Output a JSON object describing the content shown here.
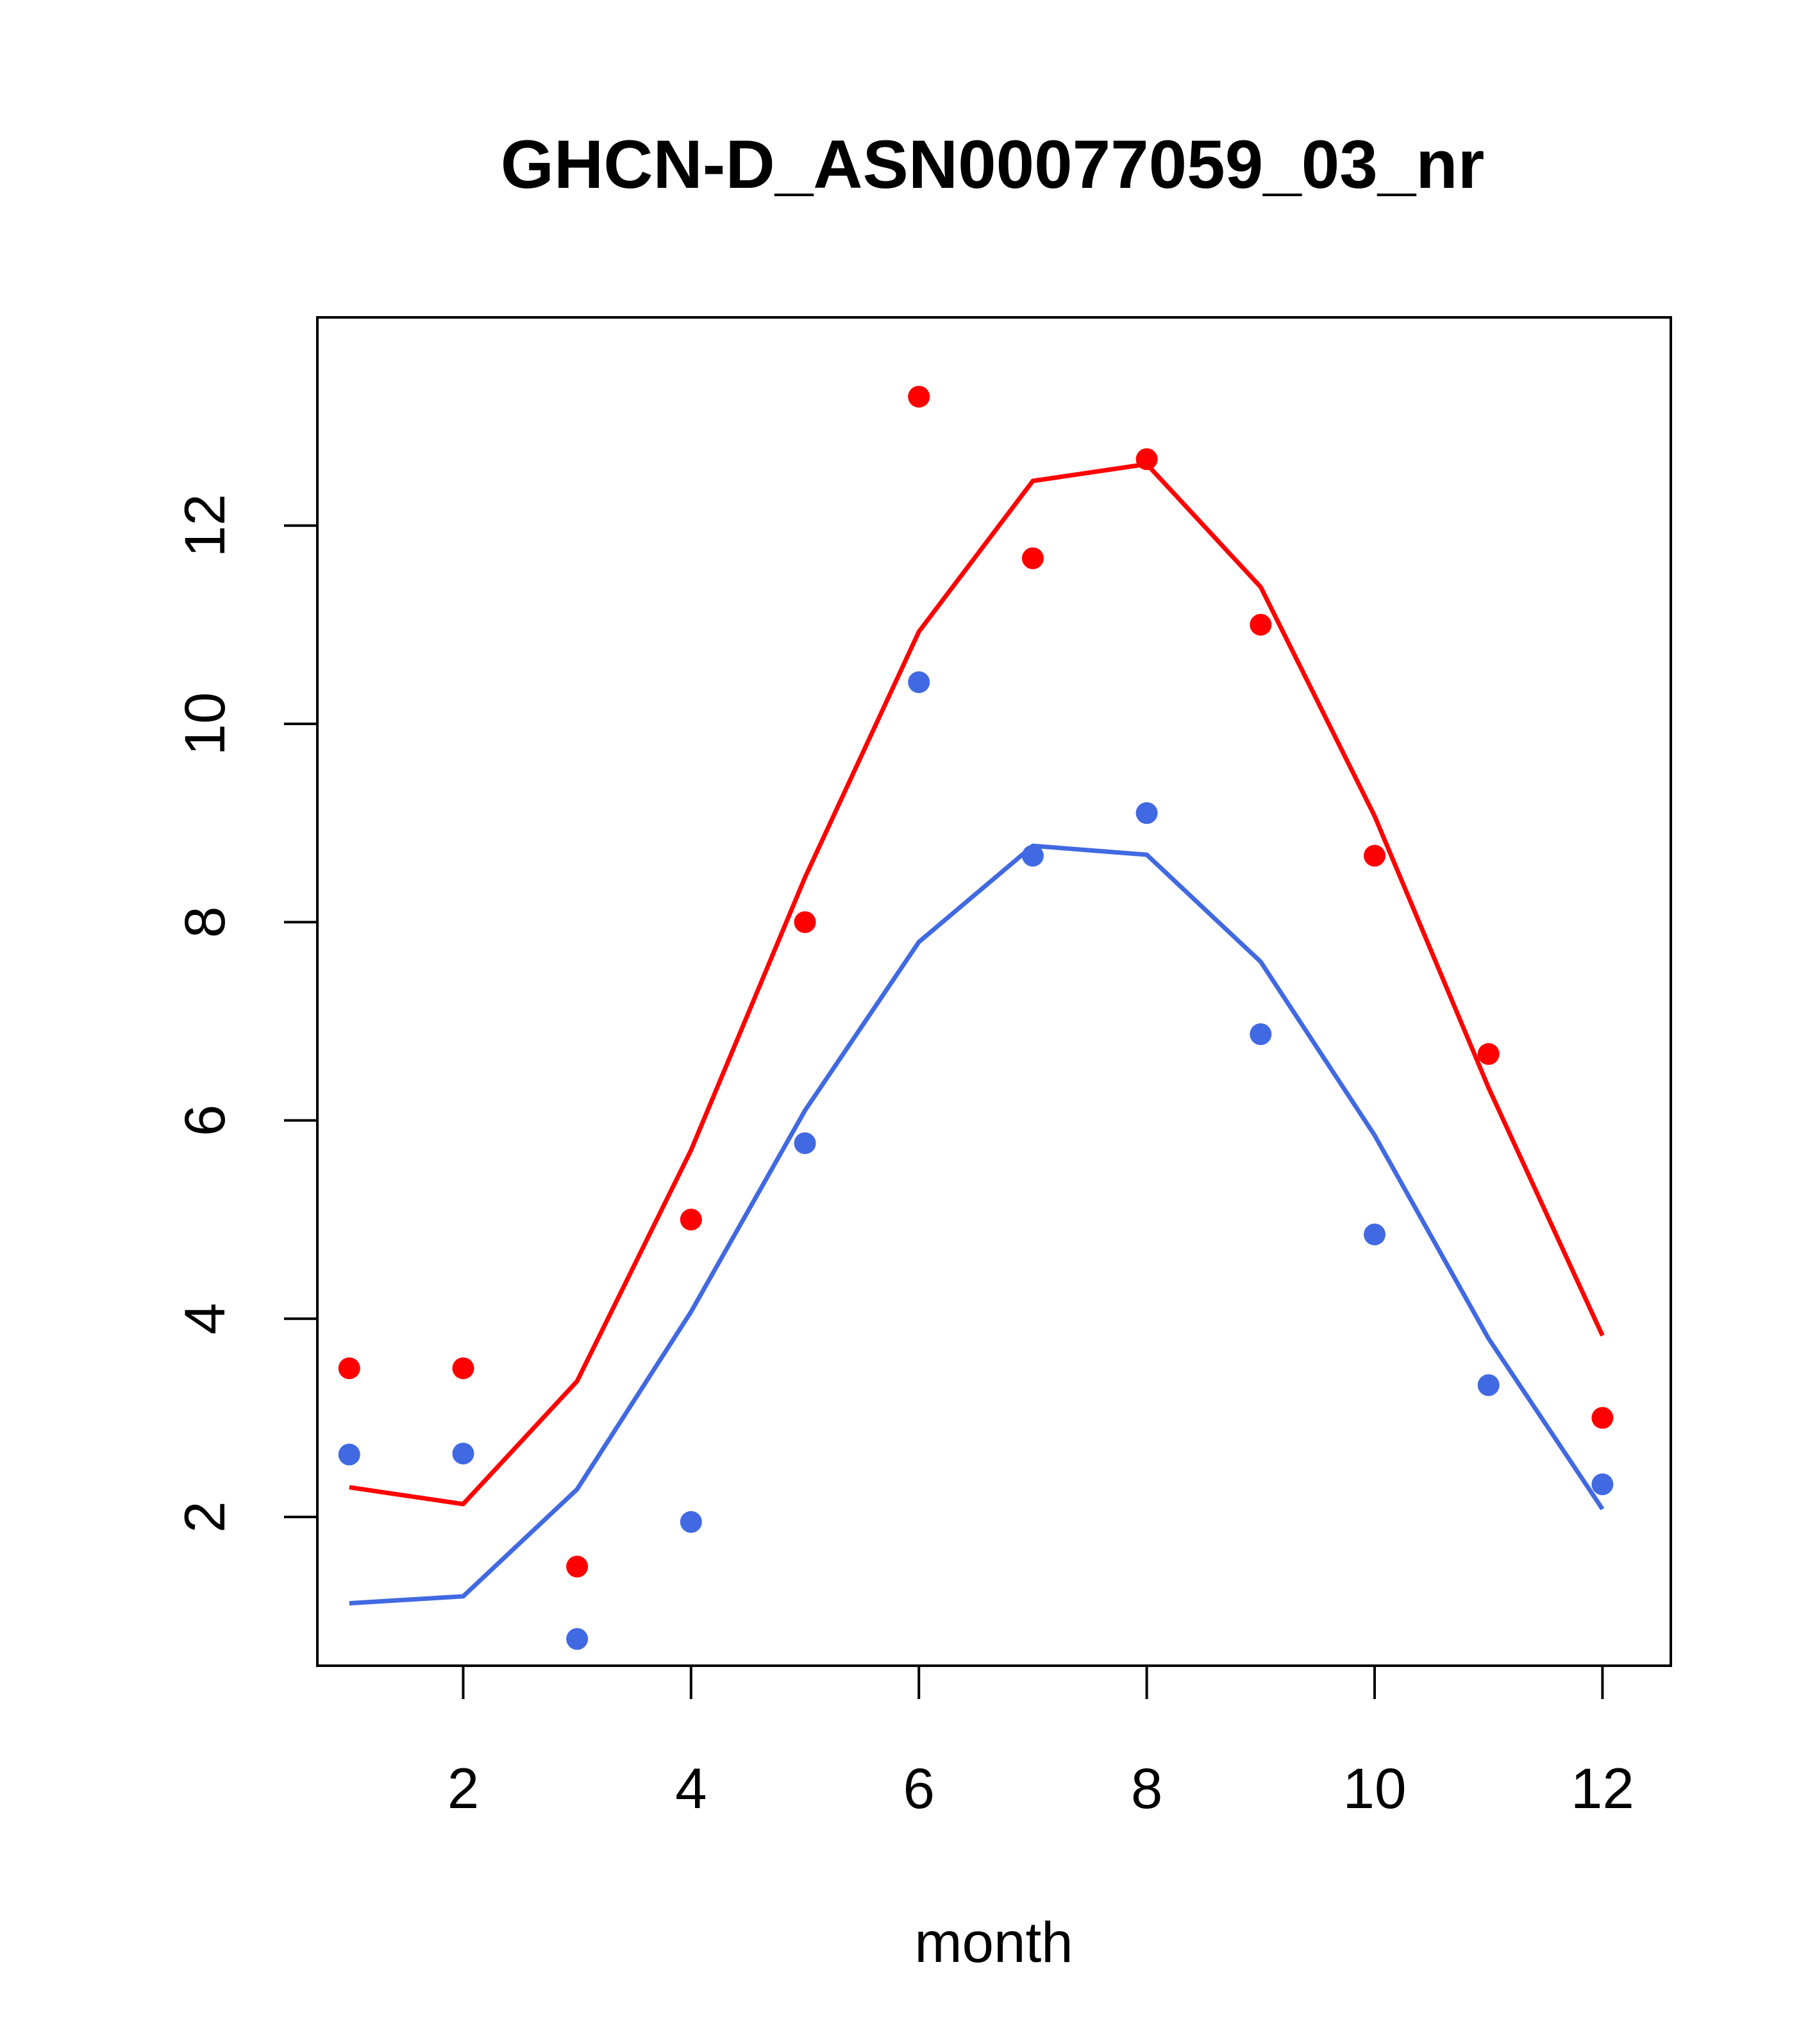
{
  "chart_data": {
    "type": "line",
    "title": "GHCN-D_ASN00077059_03_nr",
    "xlabel": "month",
    "ylabel": "",
    "xlim": [
      0.72,
      12.6
    ],
    "ylim": [
      0.5,
      14.1
    ],
    "x_ticks": [
      2,
      4,
      6,
      8,
      10,
      12
    ],
    "y_ticks": [
      2,
      4,
      6,
      8,
      10,
      12
    ],
    "grid": false,
    "legend": "none",
    "x": [
      1,
      2,
      3,
      4,
      5,
      6,
      7,
      8,
      9,
      10,
      11,
      12
    ],
    "series": [
      {
        "color": "#ff0000",
        "points": [
          3.5,
          3.5,
          1.5,
          5.0,
          8.0,
          13.3,
          11.67,
          12.67,
          11.0,
          8.67,
          6.67,
          3.0
        ],
        "line": [
          2.3,
          2.13,
          3.37,
          5.7,
          8.45,
          10.93,
          12.45,
          12.62,
          11.38,
          9.07,
          6.33,
          3.83
        ]
      },
      {
        "color": "#4169e1",
        "points": [
          2.63,
          2.64,
          0.77,
          1.95,
          5.77,
          10.42,
          8.67,
          9.1,
          6.87,
          4.85,
          3.33,
          2.33
        ],
        "line": [
          1.13,
          1.2,
          2.28,
          4.07,
          6.1,
          7.8,
          8.77,
          8.68,
          7.6,
          5.85,
          3.8,
          2.08
        ]
      }
    ]
  }
}
